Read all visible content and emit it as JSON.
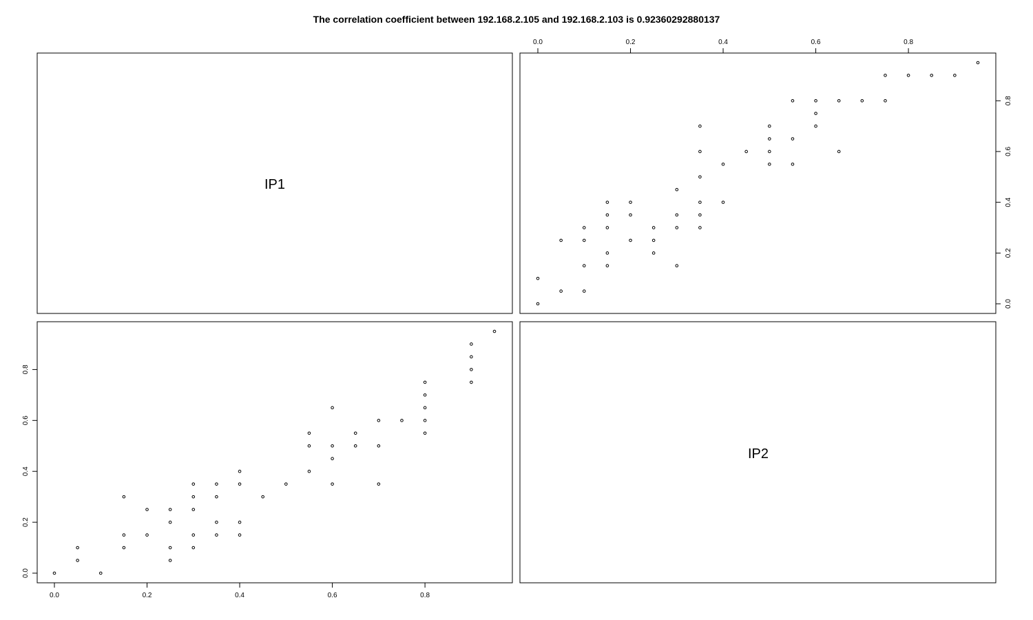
{
  "chart_data": {
    "type": "scatter",
    "title": "The correlation coefficient between 192.168.2.105 and 192.168.2.103 is 0.92360292880137",
    "variables": [
      "IP1",
      "IP2"
    ],
    "xlim": [
      0,
      0.95
    ],
    "ylim": [
      0,
      0.95
    ],
    "ticks": [
      "0.0",
      "0.2",
      "0.4",
      "0.6",
      "0.8"
    ],
    "tick_values": [
      0,
      0.2,
      0.4,
      0.6,
      0.8
    ],
    "panels": [
      {
        "name": "IP2 vs IP1",
        "x_variable": "IP2",
        "y_variable": "IP1",
        "points": [
          [
            0.0,
            0.0
          ],
          [
            0.05,
            0.05
          ],
          [
            0.05,
            0.1
          ],
          [
            0.1,
            0.0
          ],
          [
            0.15,
            0.1
          ],
          [
            0.15,
            0.15
          ],
          [
            0.15,
            0.3
          ],
          [
            0.2,
            0.15
          ],
          [
            0.2,
            0.25
          ],
          [
            0.25,
            0.05
          ],
          [
            0.25,
            0.1
          ],
          [
            0.25,
            0.2
          ],
          [
            0.25,
            0.25
          ],
          [
            0.3,
            0.1
          ],
          [
            0.3,
            0.15
          ],
          [
            0.3,
            0.25
          ],
          [
            0.3,
            0.3
          ],
          [
            0.3,
            0.35
          ],
          [
            0.35,
            0.15
          ],
          [
            0.35,
            0.2
          ],
          [
            0.35,
            0.3
          ],
          [
            0.35,
            0.35
          ],
          [
            0.4,
            0.15
          ],
          [
            0.4,
            0.2
          ],
          [
            0.4,
            0.35
          ],
          [
            0.4,
            0.4
          ],
          [
            0.45,
            0.3
          ],
          [
            0.5,
            0.35
          ],
          [
            0.55,
            0.4
          ],
          [
            0.55,
            0.5
          ],
          [
            0.55,
            0.55
          ],
          [
            0.6,
            0.35
          ],
          [
            0.6,
            0.45
          ],
          [
            0.6,
            0.5
          ],
          [
            0.6,
            0.65
          ],
          [
            0.65,
            0.5
          ],
          [
            0.65,
            0.55
          ],
          [
            0.7,
            0.35
          ],
          [
            0.7,
            0.5
          ],
          [
            0.7,
            0.6
          ],
          [
            0.75,
            0.6
          ],
          [
            0.8,
            0.55
          ],
          [
            0.8,
            0.6
          ],
          [
            0.8,
            0.65
          ],
          [
            0.8,
            0.7
          ],
          [
            0.8,
            0.75
          ],
          [
            0.9,
            0.75
          ],
          [
            0.9,
            0.8
          ],
          [
            0.9,
            0.85
          ],
          [
            0.9,
            0.9
          ],
          [
            0.95,
            0.95
          ]
        ]
      },
      {
        "name": "IP1 vs IP2",
        "x_variable": "IP1",
        "y_variable": "IP2",
        "points": [
          [
            0.0,
            0.0
          ],
          [
            0.0,
            0.1
          ],
          [
            0.05,
            0.05
          ],
          [
            0.05,
            0.25
          ],
          [
            0.1,
            0.05
          ],
          [
            0.1,
            0.15
          ],
          [
            0.1,
            0.25
          ],
          [
            0.1,
            0.3
          ],
          [
            0.15,
            0.15
          ],
          [
            0.15,
            0.2
          ],
          [
            0.15,
            0.3
          ],
          [
            0.15,
            0.35
          ],
          [
            0.15,
            0.4
          ],
          [
            0.2,
            0.25
          ],
          [
            0.2,
            0.35
          ],
          [
            0.2,
            0.4
          ],
          [
            0.25,
            0.2
          ],
          [
            0.25,
            0.25
          ],
          [
            0.25,
            0.3
          ],
          [
            0.3,
            0.15
          ],
          [
            0.3,
            0.3
          ],
          [
            0.3,
            0.35
          ],
          [
            0.3,
            0.45
          ],
          [
            0.35,
            0.3
          ],
          [
            0.35,
            0.35
          ],
          [
            0.35,
            0.4
          ],
          [
            0.35,
            0.5
          ],
          [
            0.35,
            0.6
          ],
          [
            0.35,
            0.7
          ],
          [
            0.4,
            0.4
          ],
          [
            0.4,
            0.55
          ],
          [
            0.45,
            0.6
          ],
          [
            0.5,
            0.55
          ],
          [
            0.5,
            0.6
          ],
          [
            0.5,
            0.65
          ],
          [
            0.5,
            0.7
          ],
          [
            0.55,
            0.55
          ],
          [
            0.55,
            0.65
          ],
          [
            0.55,
            0.8
          ],
          [
            0.6,
            0.7
          ],
          [
            0.6,
            0.75
          ],
          [
            0.6,
            0.8
          ],
          [
            0.65,
            0.6
          ],
          [
            0.65,
            0.8
          ],
          [
            0.7,
            0.8
          ],
          [
            0.75,
            0.8
          ],
          [
            0.75,
            0.9
          ],
          [
            0.8,
            0.9
          ],
          [
            0.85,
            0.9
          ],
          [
            0.9,
            0.9
          ],
          [
            0.95,
            0.95
          ]
        ]
      }
    ]
  }
}
